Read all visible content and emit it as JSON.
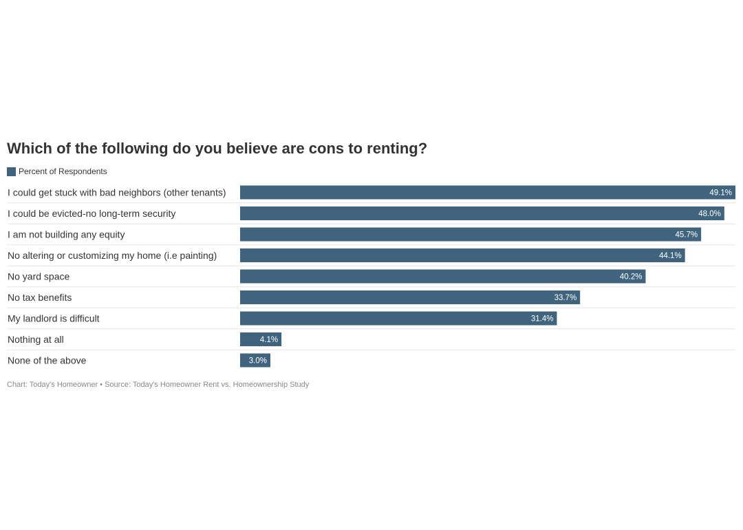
{
  "chart_data": {
    "type": "bar",
    "title": "Which of the following do you believe are cons to renting?",
    "legend": [
      "Percent of Respondents"
    ],
    "categories": [
      "I could get stuck with bad neighbors (other tenants)",
      "I could be evicted-no long-term security",
      "I am not building any equity",
      "No altering or customizing my home (i.e painting)",
      "No yard space",
      "No tax benefits",
      "My landlord is difficult",
      "Nothing at all",
      "None of the above"
    ],
    "series": [
      {
        "name": "Percent of Respondents",
        "values": [
          49.1,
          48.0,
          45.7,
          44.1,
          40.2,
          33.7,
          31.4,
          4.1,
          3.0
        ]
      }
    ],
    "value_labels": [
      "49.1%",
      "48.0%",
      "45.7%",
      "44.1%",
      "40.2%",
      "33.7%",
      "31.4%",
      "4.1%",
      "3.0%"
    ],
    "xlim": [
      0,
      49.1
    ],
    "orientation": "horizontal",
    "bar_color": "#41647e",
    "grid": false
  },
  "footer": "Chart: Today's Homeowner • Source: Today's Homeowner Rent vs. Homeownership Study"
}
